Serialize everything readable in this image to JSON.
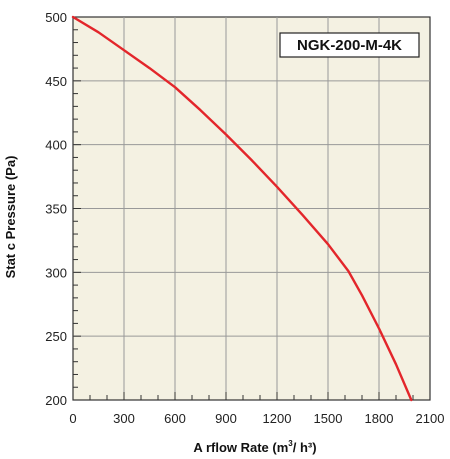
{
  "chart_data": {
    "type": "line",
    "title": "",
    "model_label": "NGK-200-M-4K",
    "xlabel": "A rflow Rate (m",
    "xlabel_sup": "3",
    "xlabel_tail": "/ h³)",
    "ylabel": "Stat c Pressure (Pa)",
    "xlim": [
      0,
      2100
    ],
    "ylim": [
      200,
      500
    ],
    "x_ticks": [
      0,
      300,
      600,
      900,
      1200,
      1500,
      1800,
      2100
    ],
    "y_ticks": [
      200,
      250,
      300,
      350,
      400,
      450,
      500
    ],
    "grid": true,
    "series": [
      {
        "name": "",
        "color": "#e3262b",
        "x": [
          0,
          150,
          300,
          450,
          600,
          750,
          900,
          1050,
          1200,
          1350,
          1500,
          1620,
          1700,
          1800,
          1900,
          1990
        ],
        "y": [
          500,
          488,
          474,
          460,
          445,
          427,
          408,
          388,
          367,
          345,
          322,
          301,
          282,
          256,
          228,
          200
        ]
      }
    ],
    "background_color": "#f4f1e2",
    "grid_color": "#999999"
  }
}
